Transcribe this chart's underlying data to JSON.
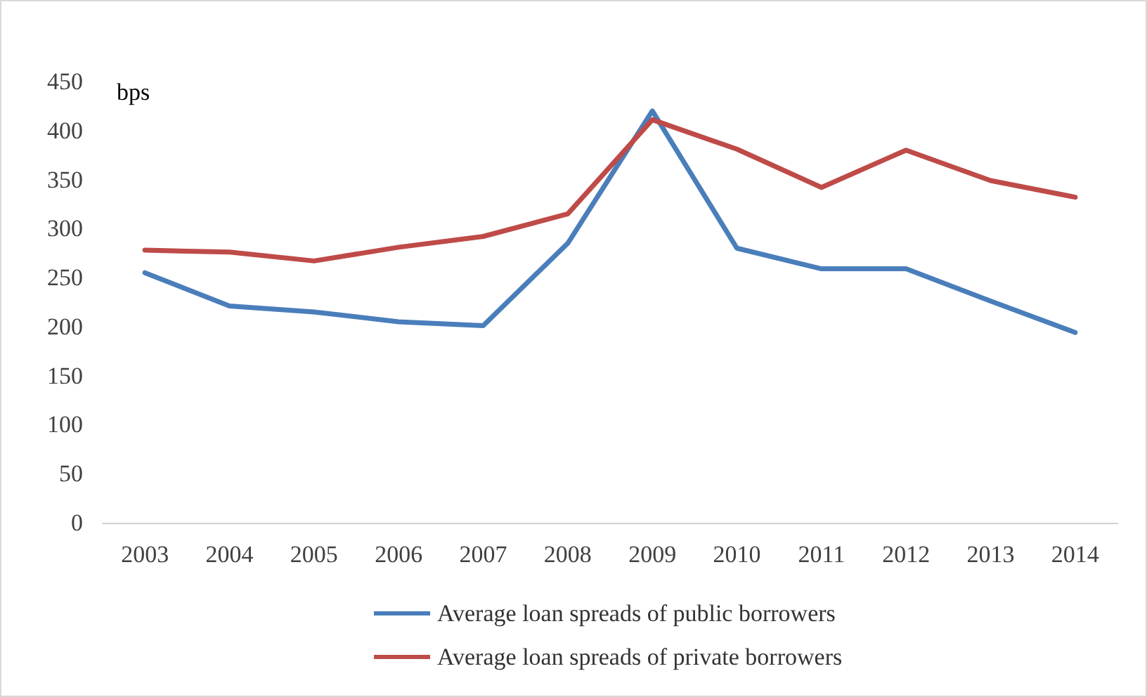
{
  "chart_data": {
    "type": "line",
    "ylabel": "bps",
    "categories": [
      "2003",
      "2004",
      "2005",
      "2006",
      "2007",
      "2008",
      "2009",
      "2010",
      "2011",
      "2012",
      "2013",
      "2014"
    ],
    "series": [
      {
        "name": "Average loan spreads of public borrowers",
        "color": "#4a7ebb",
        "values": [
          255,
          221,
          215,
          205,
          201,
          285,
          420,
          280,
          259,
          259,
          226,
          194
        ]
      },
      {
        "name": "Average loan spreads of private borrowers",
        "color": "#be4b48",
        "values": [
          278,
          276,
          267,
          281,
          292,
          315,
          411,
          381,
          342,
          380,
          349,
          332
        ]
      }
    ],
    "ylim": [
      0,
      450
    ],
    "yticks": [
      0,
      50,
      100,
      150,
      200,
      250,
      300,
      350,
      400,
      450
    ],
    "grid": false,
    "legend": "bottom",
    "marker": "none",
    "line_style": "solid"
  }
}
